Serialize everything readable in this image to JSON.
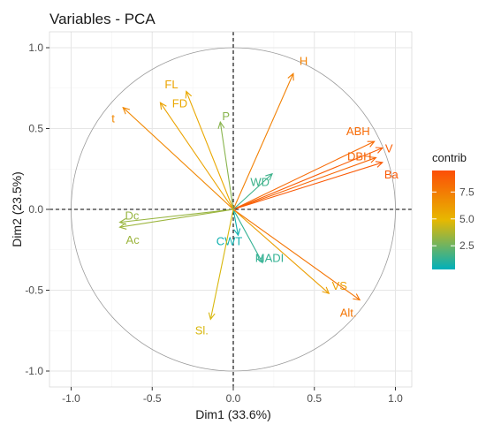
{
  "chart_data": {
    "type": "scatter",
    "subtype": "pca-variable-correlation-circle",
    "title": "Variables - PCA",
    "xlabel": "Dim1 (33.6%)",
    "ylabel": "Dim2 (23.5%)",
    "xlim": [
      -1.0,
      1.0
    ],
    "ylim": [
      -1.0,
      1.0
    ],
    "x_ticks": [
      -1.0,
      -0.5,
      0.0,
      0.5,
      1.0
    ],
    "y_ticks": [
      -1.0,
      -0.5,
      0.0,
      0.5,
      1.0
    ],
    "x_tick_labels": [
      "-1.0",
      "-0.5",
      "0.0",
      "0.5",
      "1.0"
    ],
    "y_tick_labels": [
      "-1.0",
      "-0.5",
      "0.0",
      "0.5",
      "1.0"
    ],
    "grid": true,
    "unit_circle": true,
    "reference_lines": {
      "x": 0,
      "y": 0,
      "style": "dashed"
    },
    "legend": {
      "title": "contrib",
      "placement": "right",
      "ticks": [
        2.5,
        5.0,
        7.5
      ],
      "tick_labels": [
        "2.5",
        "5.0",
        "7.5"
      ],
      "range": [
        0.3,
        9.5
      ],
      "gradient": [
        "#00AFBB",
        "#E7B800",
        "#FC4E07"
      ]
    },
    "variables": [
      {
        "name": "H",
        "label": "H",
        "x": 0.37,
        "y": 0.84,
        "contrib": 7.3
      },
      {
        "name": "ABH",
        "label": "ABH",
        "x": 0.87,
        "y": 0.42,
        "contrib": 8.3
      },
      {
        "name": "V",
        "label": "V",
        "x": 0.92,
        "y": 0.38,
        "contrib": 8.8
      },
      {
        "name": "DBH",
        "label": "DBH",
        "x": 0.88,
        "y": 0.32,
        "contrib": 8.5
      },
      {
        "name": "Ba",
        "label": "Ba",
        "x": 0.92,
        "y": 0.29,
        "contrib": 9.0
      },
      {
        "name": "WD",
        "label": "WD",
        "x": 0.24,
        "y": 0.22,
        "contrib": 1.5
      },
      {
        "name": "t",
        "label": "t",
        "x": -0.68,
        "y": 0.63,
        "contrib": 7.0
      },
      {
        "name": "FL",
        "label": "FL",
        "x": -0.45,
        "y": 0.66,
        "contrib": 5.8
      },
      {
        "name": "FD",
        "label": "FD",
        "x": -0.29,
        "y": 0.73,
        "contrib": 5.6
      },
      {
        "name": "P",
        "label": "P",
        "x": -0.08,
        "y": 0.54,
        "contrib": 3.0
      },
      {
        "name": "Dc",
        "label": "Dc",
        "x": -0.7,
        "y": -0.08,
        "contrib": 3.3
      },
      {
        "name": "Ac",
        "label": "Ac",
        "x": -0.7,
        "y": -0.11,
        "contrib": 3.4
      },
      {
        "name": "CWT",
        "label": "CWT",
        "x": 0.03,
        "y": -0.16,
        "contrib": 0.6
      },
      {
        "name": "MADI",
        "label": "MADI",
        "x": 0.18,
        "y": -0.33,
        "contrib": 1.3
      },
      {
        "name": "VS",
        "label": "VS",
        "x": 0.59,
        "y": -0.52,
        "contrib": 6.0
      },
      {
        "name": "Alt",
        "label": "Alt.",
        "x": 0.78,
        "y": -0.56,
        "contrib": 7.8
      },
      {
        "name": "Sl",
        "label": "Sl.",
        "x": -0.14,
        "y": -0.68,
        "contrib": 4.6
      }
    ]
  }
}
